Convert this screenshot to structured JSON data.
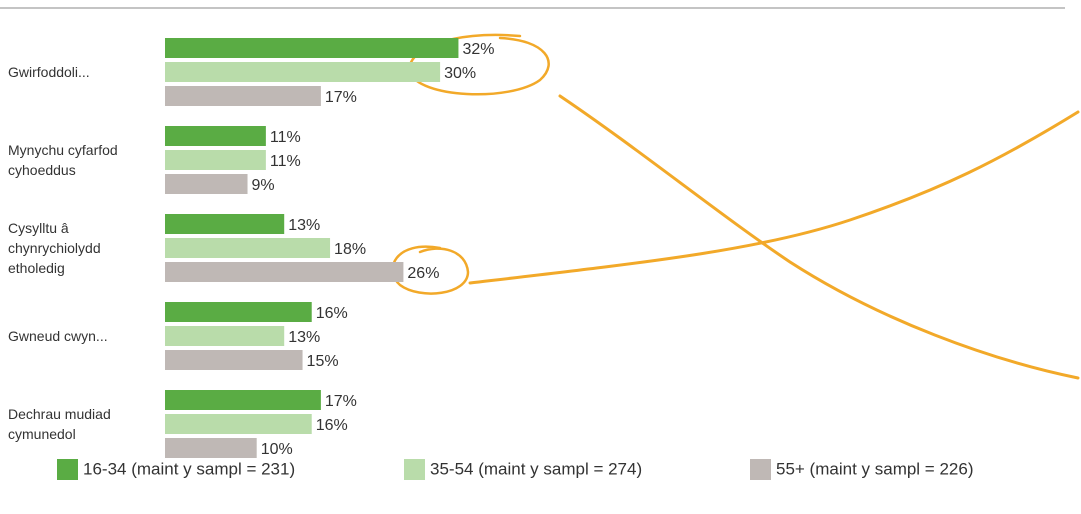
{
  "chart_data": {
    "type": "bar",
    "orientation": "horizontal",
    "categories": [
      "Gwirfoddoli...",
      "Mynychu cyfarfod cyhoeddus",
      "Cysylltu â chynrychiolydd etholedig",
      "Gwneud cwyn...",
      "Dechrau mudiad cymunedol"
    ],
    "series": [
      {
        "name": "16-34 (maint y sampl = 231)",
        "color": "#5aac44",
        "values": [
          32,
          11,
          13,
          16,
          17
        ],
        "value_labels": [
          "32%",
          "11%",
          "13%",
          "16%",
          "17%"
        ]
      },
      {
        "name": "35-54 (maint y sampl = 274)",
        "color": "#b9dcaa",
        "values": [
          30,
          11,
          18,
          13,
          16
        ],
        "value_labels": [
          "30%",
          "11%",
          "18%",
          "13%",
          "16%"
        ]
      },
      {
        "name": "55+ (maint y sampl = 226)",
        "color": "#bfb8b5",
        "values": [
          17,
          9,
          26,
          15,
          10
        ],
        "value_labels": [
          "17%",
          "9%",
          "26%",
          "15%",
          "10%"
        ]
      }
    ]
  }
}
